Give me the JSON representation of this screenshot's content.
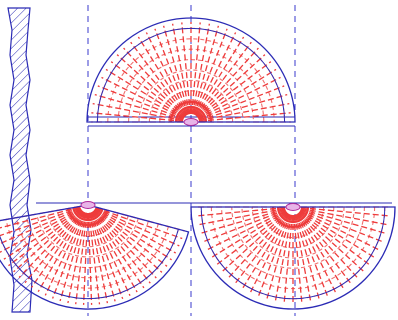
{
  "colors": {
    "background": "#ffffff",
    "outline": "#2b2bb5",
    "centerline": "#3a3acc",
    "field_rays": "#ee3b3b",
    "field_arcs": "#f07070",
    "source_fill": "#e8b4e8",
    "source_stroke": "#b02a9a"
  },
  "figure": {
    "elements": [
      "hatched-wall",
      "upper-semicircular-pattern",
      "lower-left-tilted-pattern",
      "lower-right-semicircular-pattern"
    ],
    "hatch_pattern": "diagonal",
    "centerlines": "dashed"
  }
}
